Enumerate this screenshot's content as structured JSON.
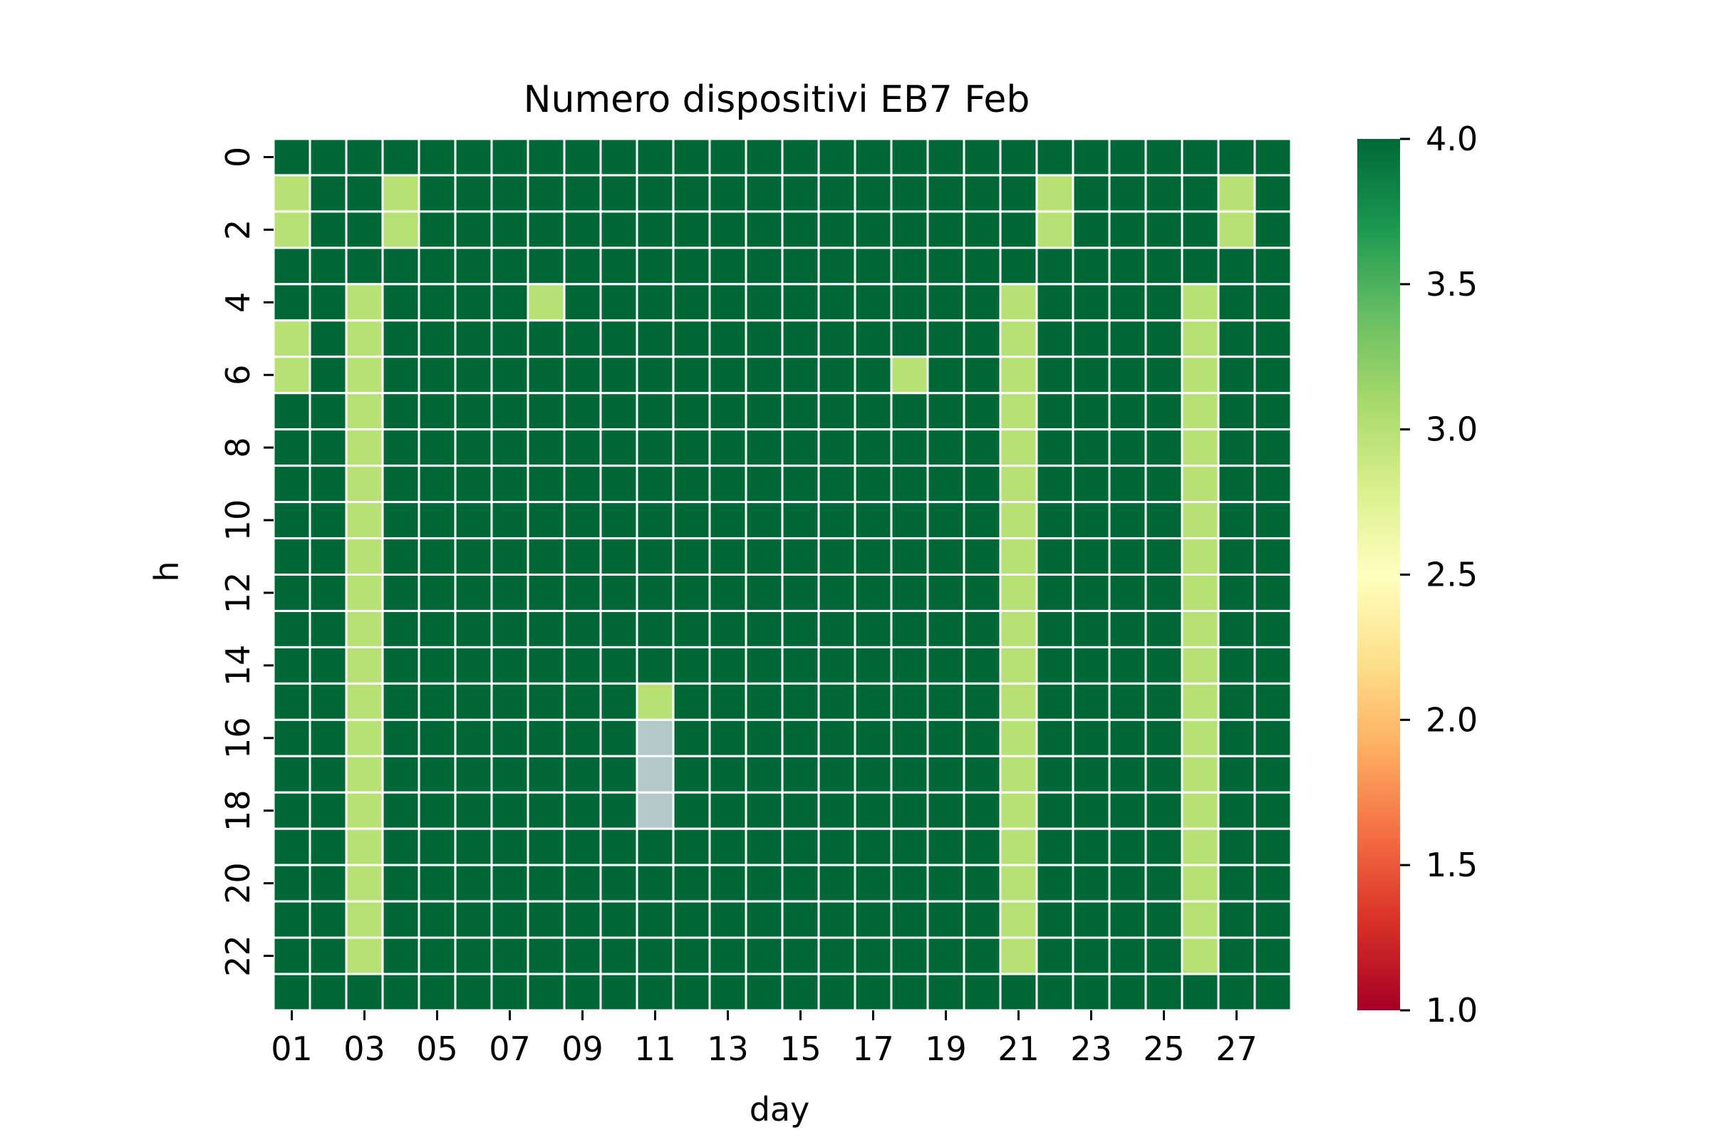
{
  "chart_data": {
    "type": "heatmap",
    "title": "Numero dispositivi EB7 Feb",
    "xlabel": "day",
    "ylabel": "h",
    "x_tick_labels": [
      "01",
      "03",
      "05",
      "07",
      "09",
      "11",
      "13",
      "15",
      "17",
      "19",
      "21",
      "23",
      "25",
      "27"
    ],
    "y_tick_labels": [
      "0",
      "2",
      "4",
      "6",
      "8",
      "10",
      "12",
      "14",
      "16",
      "18",
      "20",
      "22"
    ],
    "days": 28,
    "hours": 24,
    "default_value": 4,
    "exceptions": [
      {
        "day": 1,
        "hours": [
          1,
          2,
          5,
          6
        ],
        "value": 3
      },
      {
        "day": 3,
        "hours": [
          4,
          5,
          6,
          7,
          8,
          9,
          10,
          11,
          12,
          13,
          14,
          15,
          16,
          17,
          18,
          19,
          20,
          21,
          22
        ],
        "value": 3
      },
      {
        "day": 4,
        "hours": [
          1,
          2
        ],
        "value": 3
      },
      {
        "day": 8,
        "hours": [
          4
        ],
        "value": 3
      },
      {
        "day": 11,
        "hours": [
          15
        ],
        "value": 3
      },
      {
        "day": 11,
        "hours": [
          16,
          17,
          18
        ],
        "value": null
      },
      {
        "day": 18,
        "hours": [
          6
        ],
        "value": 3
      },
      {
        "day": 21,
        "hours": [
          4,
          5,
          6,
          7,
          8,
          9,
          10,
          11,
          12,
          13,
          14,
          15,
          16,
          17,
          18,
          19,
          20,
          21,
          22
        ],
        "value": 3
      },
      {
        "day": 22,
        "hours": [
          1,
          2
        ],
        "value": 3
      },
      {
        "day": 26,
        "hours": [
          4,
          5,
          6,
          7,
          8,
          9,
          10,
          11,
          12,
          13,
          14,
          15,
          16,
          17,
          18,
          19,
          20,
          21,
          22
        ],
        "value": 3
      },
      {
        "day": 27,
        "hours": [
          1,
          2
        ],
        "value": 3
      }
    ],
    "colorbar": {
      "min": 1.0,
      "max": 4.0,
      "tick_labels": [
        "1.0",
        "1.5",
        "2.0",
        "2.5",
        "3.0",
        "3.5",
        "4.0"
      ],
      "colormap": "RdYlGn",
      "stops": [
        "#a50026",
        "#d73027",
        "#f46d43",
        "#fdae61",
        "#fee08b",
        "#ffffbf",
        "#d9ef8b",
        "#a6d96a",
        "#66bd63",
        "#1a9850",
        "#006837"
      ]
    },
    "missing_color": "#b3c8c8",
    "grid_line_color": "#ffffff"
  }
}
